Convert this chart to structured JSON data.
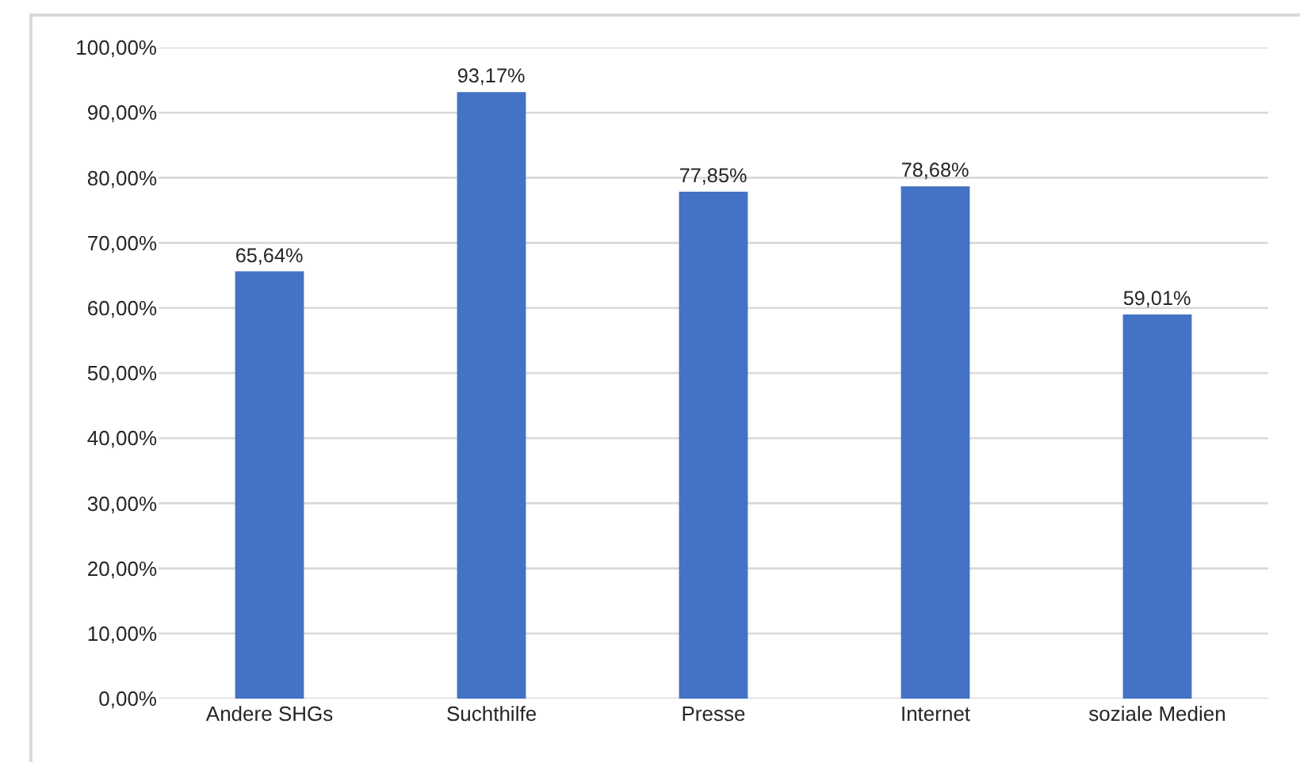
{
  "chart_data": {
    "type": "bar",
    "categories": [
      "Andere SHGs",
      "Suchthilfe",
      "Presse",
      "Internet",
      "soziale Medien"
    ],
    "values": [
      65.64,
      93.17,
      77.85,
      78.68,
      59.01
    ],
    "value_labels": [
      "65,64%",
      "93,17%",
      "77,85%",
      "78,68%",
      "59,01%"
    ],
    "color": "#4472c4",
    "ylim": [
      0,
      100
    ],
    "yticks": [
      {
        "value": 0,
        "label": "0,00%"
      },
      {
        "value": 10,
        "label": "10,00%"
      },
      {
        "value": 20,
        "label": "20,00%"
      },
      {
        "value": 30,
        "label": "30,00%"
      },
      {
        "value": 40,
        "label": "40,00%"
      },
      {
        "value": 50,
        "label": "50,00%"
      },
      {
        "value": 60,
        "label": "60,00%"
      },
      {
        "value": 70,
        "label": "70,00%"
      },
      {
        "value": 80,
        "label": "80,00%"
      },
      {
        "value": 90,
        "label": "90,00%"
      },
      {
        "value": 100,
        "label": "100,00%"
      }
    ],
    "grid": "y"
  }
}
